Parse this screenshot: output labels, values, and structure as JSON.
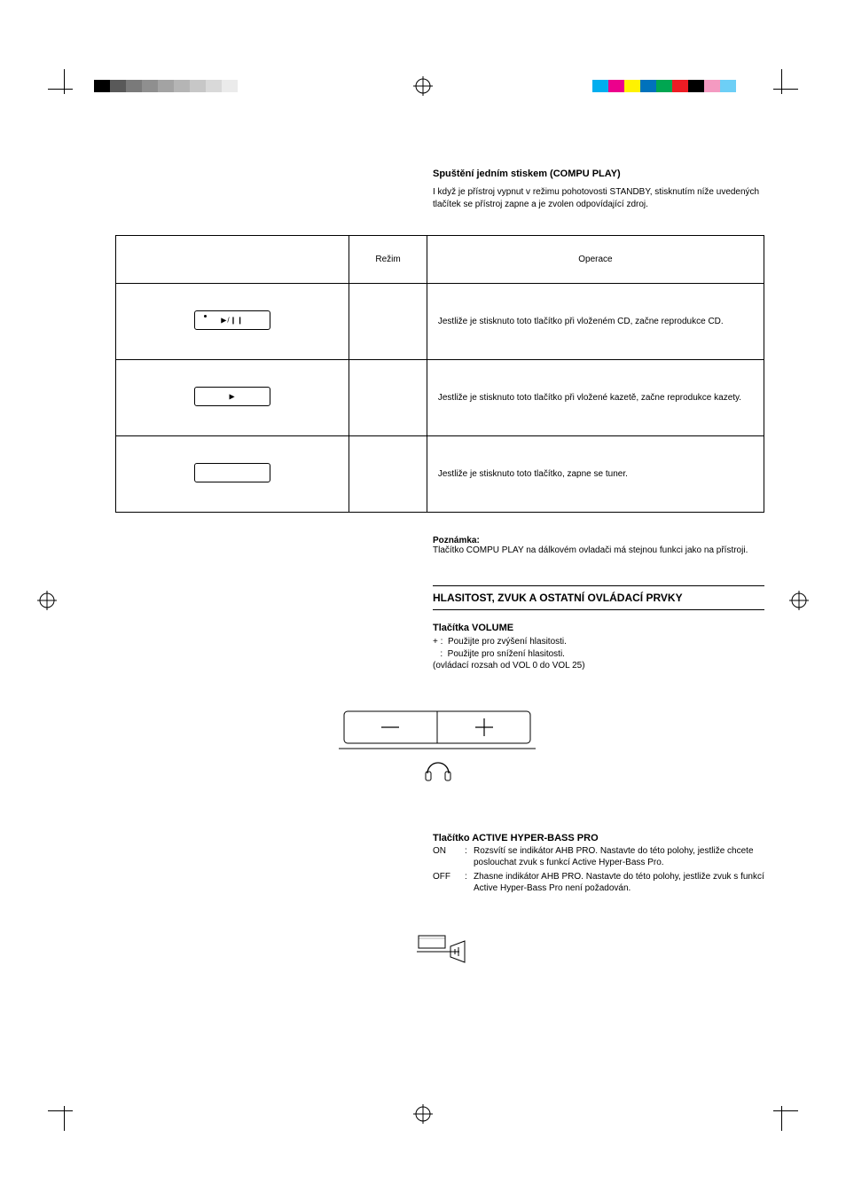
{
  "calibration": {
    "left_swatches": [
      "#000000",
      "#595959",
      "#7a7a7a",
      "#8f8f8f",
      "#a3a3a3",
      "#b5b5b5",
      "#c7c7c7",
      "#d9d9d9",
      "#ebebeb",
      "#ffffff"
    ],
    "right_swatches": [
      "#00aeef",
      "#ec008c",
      "#fff200",
      "#0072bc",
      "#00a651",
      "#ed1c24",
      "#000000",
      "#f49ac1",
      "#6dcff6",
      "#ffffff"
    ]
  },
  "compu_play": {
    "heading": "Spuštění jedním stiskem (COMPU PLAY)",
    "intro": "I když je přístroj vypnut v režimu pohotovosti STANDBY, stisknutím níže uvedených tlačítek se přístroj zapne a je zvolen odpovídající zdroj.",
    "table": {
      "headers": {
        "button": "",
        "mode": "Režim",
        "operation": "Operace"
      },
      "rows": [
        {
          "icon": "play-pause",
          "mode": "",
          "operation": "Jestliže je stisknuto toto tlačítko při vloženém CD, začne reprodukce CD."
        },
        {
          "icon": "play",
          "mode": "",
          "operation": "Jestliže je stisknuto toto tlačítko při vložené kazetě, začne reprodukce kazety."
        },
        {
          "icon": "blank",
          "mode": "",
          "operation": "Jestliže je stisknuto toto tlačítko, zapne se tuner."
        }
      ]
    },
    "note_label": "Poznámka:",
    "note_text": "Tlačítko COMPU PLAY na dálkovém ovladači má stejnou funkci jako na přístroji."
  },
  "section_bar": "HLASITOST, ZVUK A OSTATNÍ OVLÁDACÍ PRVKY",
  "volume": {
    "heading": "Tlačítka VOLUME",
    "plus": "Použijte pro zvýšení hlasitosti.",
    "minus": "Použijte pro snížení hlasitosti.",
    "range": "(ovládací rozsah od VOL 0 do VOL 25)",
    "drawing": {
      "box_stroke": "#000000",
      "minus_glyph": "—",
      "plus_glyph": "+"
    }
  },
  "ahb": {
    "heading": "Tlačítko ACTIVE HYPER-BASS PRO",
    "on_label": "ON",
    "on_text": "Rozsvítí se indikátor AHB PRO. Nastavte do této polohy, jestliže chcete poslouchat zvuk s funkcí Active Hyper-Bass Pro.",
    "off_label": "OFF",
    "off_text": "Zhasne indikátor AHB PRO. Nastavte do této polohy, jestliže zvuk s funkcí Active Hyper-Bass Pro není požadován."
  }
}
